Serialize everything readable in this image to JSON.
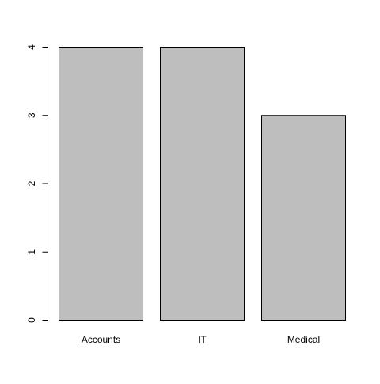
{
  "chart_data": {
    "type": "bar",
    "categories": [
      "Accounts",
      "IT",
      "Medical"
    ],
    "values": [
      4,
      4,
      3
    ],
    "title": "",
    "xlabel": "",
    "ylabel": "",
    "ylim": [
      0,
      4
    ],
    "yticks": [
      "0",
      "1",
      "2",
      "3",
      "4"
    ],
    "grid": false,
    "legend": "none",
    "colors": {
      "bar_fill": "#bebebe",
      "bar_stroke": "#000000",
      "axis": "#000000",
      "background": "#ffffff"
    }
  }
}
